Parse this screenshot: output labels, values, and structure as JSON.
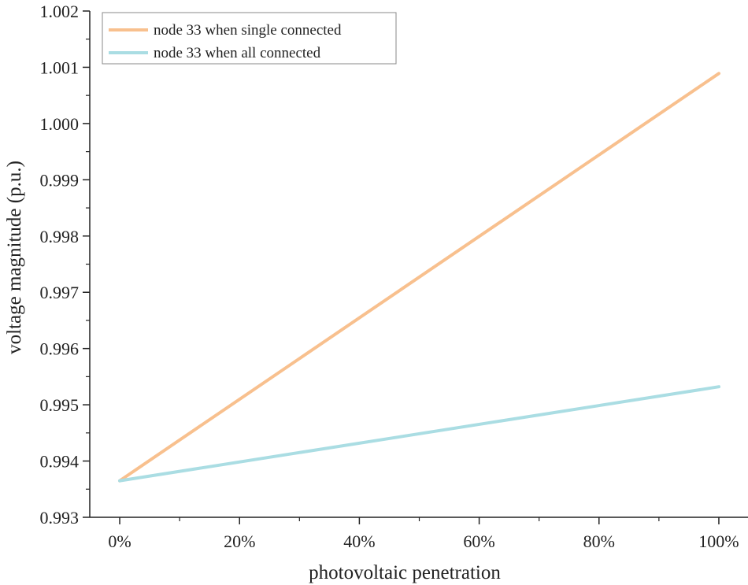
{
  "chart_data": {
    "type": "line",
    "title": "",
    "xlabel": "photovoltaic penetration",
    "ylabel": "voltage magnitude (p.u.)",
    "x": [
      0,
      100
    ],
    "xlim": [
      -5,
      105
    ],
    "ylim": [
      0.993,
      1.002
    ],
    "x_ticks": [
      0,
      20,
      40,
      60,
      80,
      100
    ],
    "x_tick_labels": [
      "0%",
      "20%",
      "40%",
      "60%",
      "80%",
      "100%"
    ],
    "y_ticks": [
      0.993,
      0.994,
      0.995,
      0.996,
      0.997,
      0.998,
      0.999,
      1.0,
      1.001,
      1.002
    ],
    "y_tick_labels": [
      "0.993",
      "0.994",
      "0.995",
      "0.996",
      "0.997",
      "0.998",
      "0.999",
      "1.000",
      "1.001",
      "1.002"
    ],
    "grid": false,
    "legend_position": "top-left",
    "series": [
      {
        "name": "node 33 when single connected",
        "color": "#f8c08e",
        "x": [
          0,
          100
        ],
        "values": [
          0.99365,
          1.00089
        ]
      },
      {
        "name": "node 33 when all connected",
        "color": "#aadde3",
        "x": [
          0,
          100
        ],
        "values": [
          0.99365,
          0.99532
        ]
      }
    ]
  }
}
